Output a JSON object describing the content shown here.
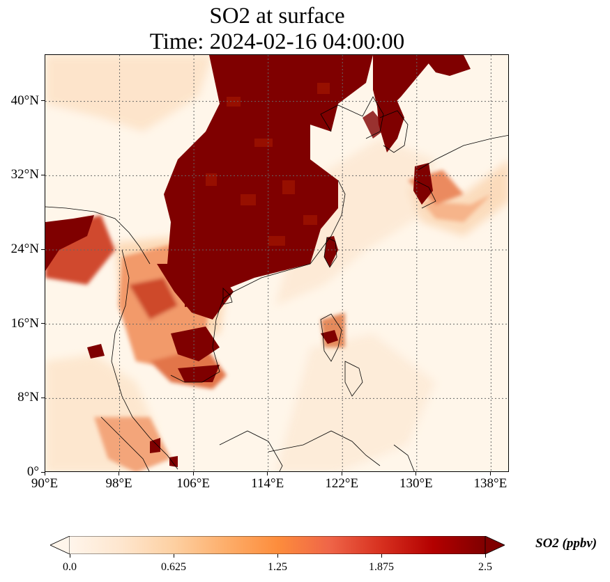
{
  "title_line1": "SO2 at surface",
  "title_line2": "Time: 2024-02-16 04:00:00",
  "map": {
    "lon_range": [
      90,
      140
    ],
    "lat_range": [
      0,
      45
    ],
    "lon_ticks": [
      {
        "value": 90,
        "label": "90°E"
      },
      {
        "value": 98,
        "label": "98°E"
      },
      {
        "value": 106,
        "label": "106°E"
      },
      {
        "value": 114,
        "label": "114°E"
      },
      {
        "value": 122,
        "label": "122°E"
      },
      {
        "value": 130,
        "label": "130°E"
      },
      {
        "value": 138,
        "label": "138°E"
      }
    ],
    "lat_ticks": [
      {
        "value": 0,
        "label": "0°"
      },
      {
        "value": 8,
        "label": "8°N"
      },
      {
        "value": 16,
        "label": "16°N"
      },
      {
        "value": 24,
        "label": "24°N"
      },
      {
        "value": 32,
        "label": "32°N"
      },
      {
        "value": 40,
        "label": "40°N"
      }
    ],
    "gridlines": true,
    "colormap": [
      "#fff5eb",
      "#fee6ce",
      "#fdd0a2",
      "#fdae6b",
      "#fd8d3c",
      "#f16913",
      "#d94801",
      "#a63603",
      "#7f0000"
    ],
    "high_color": "#7f0000",
    "background_color": "#fff6ea"
  },
  "colorbar": {
    "title": "SO2 (ppbv)",
    "min": 0.0,
    "max": 2.5,
    "extend": "both",
    "ticks": [
      {
        "value": 0.0,
        "label": "0.0"
      },
      {
        "value": 0.625,
        "label": "0.625"
      },
      {
        "value": 1.25,
        "label": "1.25"
      },
      {
        "value": 1.875,
        "label": "1.875"
      },
      {
        "value": 2.5,
        "label": "2.5"
      }
    ]
  }
}
